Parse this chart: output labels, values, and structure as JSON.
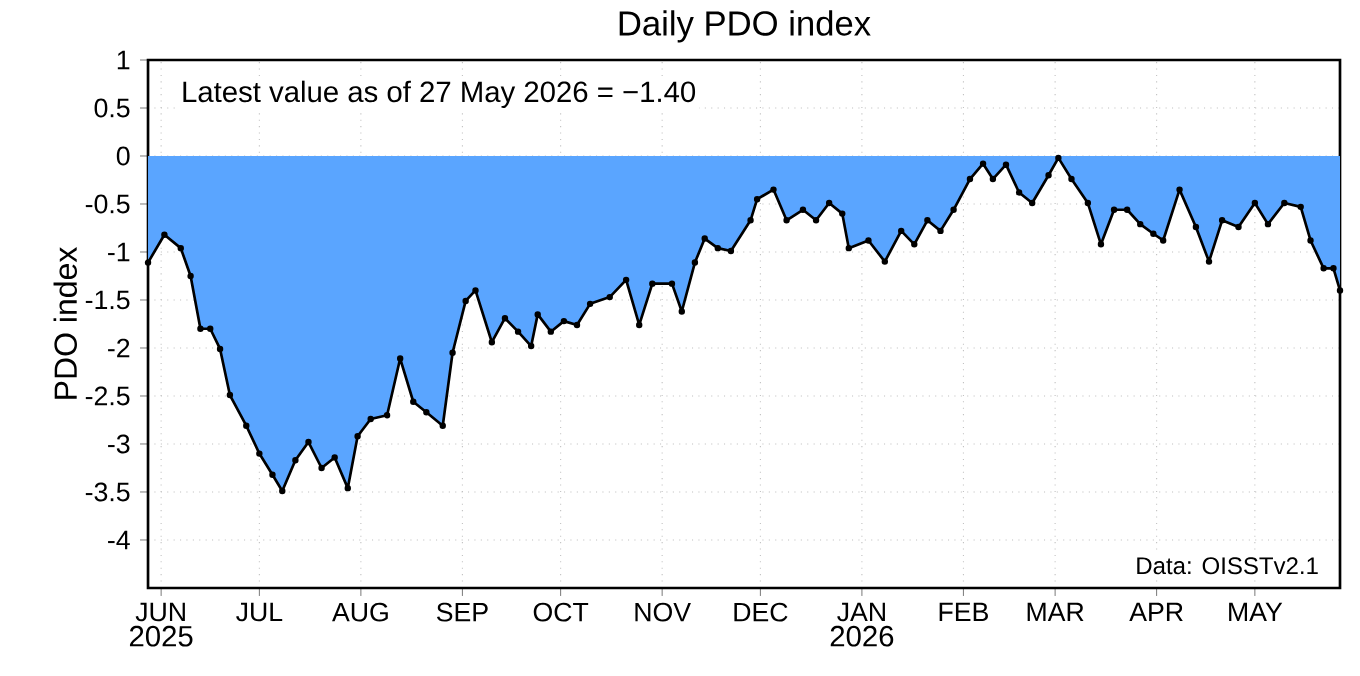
{
  "chart_data": {
    "type": "area",
    "title": "Daily PDO index",
    "ylabel": "PDO index",
    "annotations": [
      "Latest value as of 27 May 2026 = −1.40",
      "Data: OISSTv2.1",
      "2025",
      "2026"
    ],
    "x": [
      "2025-05-28",
      "2025-06-02",
      "2025-06-07",
      "2025-06-10",
      "2025-06-13",
      "2025-06-16",
      "2025-06-19",
      "2025-06-22",
      "2025-06-27",
      "2025-07-01",
      "2025-07-05",
      "2025-07-08",
      "2025-07-12",
      "2025-07-16",
      "2025-07-20",
      "2025-07-24",
      "2025-07-28",
      "2025-07-31",
      "2025-08-04",
      "2025-08-09",
      "2025-08-13",
      "2025-08-17",
      "2025-08-21",
      "2025-08-26",
      "2025-08-29",
      "2025-09-02",
      "2025-09-05",
      "2025-09-10",
      "2025-09-14",
      "2025-09-18",
      "2025-09-22",
      "2025-09-24",
      "2025-09-28",
      "2025-10-02",
      "2025-10-06",
      "2025-10-10",
      "2025-10-16",
      "2025-10-21",
      "2025-10-25",
      "2025-10-29",
      "2025-11-04",
      "2025-11-07",
      "2025-11-11",
      "2025-11-14",
      "2025-11-18",
      "2025-11-22",
      "2025-11-28",
      "2025-11-30",
      "2025-12-05",
      "2025-12-09",
      "2025-12-14",
      "2025-12-18",
      "2025-12-22",
      "2025-12-26",
      "2025-12-28",
      "2026-01-03",
      "2026-01-08",
      "2026-01-13",
      "2026-01-17",
      "2026-01-21",
      "2026-01-25",
      "2026-01-29",
      "2026-02-03",
      "2026-02-07",
      "2026-02-10",
      "2026-02-14",
      "2026-02-18",
      "2026-02-22",
      "2026-02-27",
      "2026-03-02",
      "2026-03-06",
      "2026-03-11",
      "2026-03-15",
      "2026-03-19",
      "2026-03-23",
      "2026-03-27",
      "2026-03-31",
      "2026-04-03",
      "2026-04-08",
      "2026-04-13",
      "2026-04-17",
      "2026-04-21",
      "2026-04-26",
      "2026-05-01",
      "2026-05-05",
      "2026-05-10",
      "2026-05-15",
      "2026-05-18",
      "2026-05-22",
      "2026-05-25",
      "2026-05-27"
    ],
    "values": [
      -1.11,
      -0.82,
      -0.96,
      -1.25,
      -1.8,
      -1.8,
      -2.01,
      -2.49,
      -2.81,
      -3.1,
      -3.32,
      -3.49,
      -3.17,
      -2.98,
      -3.25,
      -3.14,
      -3.46,
      -2.92,
      -2.74,
      -2.7,
      -2.11,
      -2.56,
      -2.67,
      -2.81,
      -2.05,
      -1.51,
      -1.4,
      -1.94,
      -1.69,
      -1.83,
      -1.98,
      -1.65,
      -1.83,
      -1.72,
      -1.76,
      -1.54,
      -1.47,
      -1.29,
      -1.76,
      -1.33,
      -1.33,
      -1.62,
      -1.11,
      -0.86,
      -0.96,
      -0.99,
      -0.67,
      -0.45,
      -0.35,
      -0.67,
      -0.56,
      -0.67,
      -0.49,
      -0.6,
      -0.96,
      -0.88,
      -1.1,
      -0.78,
      -0.92,
      -0.67,
      -0.78,
      -0.56,
      -0.24,
      -0.08,
      -0.24,
      -0.09,
      -0.38,
      -0.49,
      -0.2,
      -0.02,
      -0.24,
      -0.49,
      -0.92,
      -0.56,
      -0.56,
      -0.71,
      -0.81,
      -0.88,
      -0.35,
      -0.74,
      -1.1,
      -0.67,
      -0.74,
      -0.49,
      -0.71,
      -0.49,
      -0.53,
      -0.88,
      -1.17,
      -1.17,
      -1.4
    ],
    "color": "#5aa5ff",
    "marker": "circle",
    "grid": true,
    "xlim": [
      "2025-05-28",
      "2026-05-27"
    ],
    "ylim": [
      -4.5,
      1
    ],
    "xticks": [
      {
        "value": "2025-06-01",
        "label": "JUN"
      },
      {
        "value": "2025-07-01",
        "label": "JUL"
      },
      {
        "value": "2025-08-01",
        "label": "AUG"
      },
      {
        "value": "2025-09-01",
        "label": "SEP"
      },
      {
        "value": "2025-10-01",
        "label": "OCT"
      },
      {
        "value": "2025-11-01",
        "label": "NOV"
      },
      {
        "value": "2025-12-01",
        "label": "DEC"
      },
      {
        "value": "2026-01-01",
        "label": "JAN"
      },
      {
        "value": "2026-02-01",
        "label": "FEB"
      },
      {
        "value": "2026-03-01",
        "label": "MAR"
      },
      {
        "value": "2026-04-01",
        "label": "APR"
      },
      {
        "value": "2026-05-01",
        "label": "MAY"
      }
    ],
    "yticks": [
      1,
      0.5,
      0,
      -0.5,
      -1,
      -1.5,
      -2,
      -2.5,
      -3,
      -3.5,
      -4
    ]
  }
}
